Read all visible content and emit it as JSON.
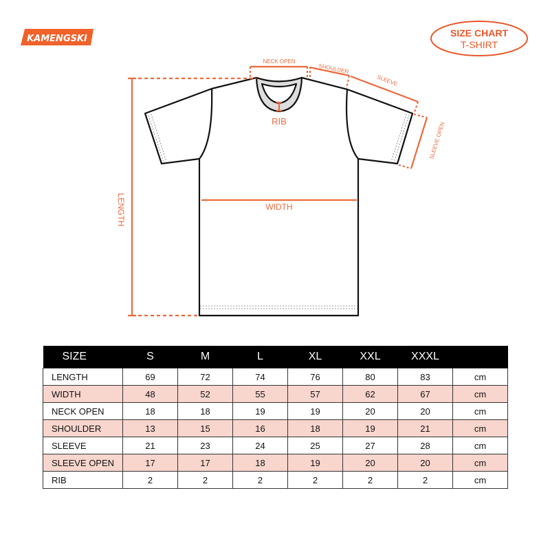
{
  "brand": {
    "logo_text": "KAMENGSKI",
    "color": "#f0622a"
  },
  "badge": {
    "line1": "SIZE CHART",
    "line2": "T-SHIRT",
    "color": "#e8582a"
  },
  "diagram": {
    "accent": "#ec6a3c",
    "labels": {
      "neck_open": "NECK OPEN",
      "shoulder": "SHOULDER",
      "sleeve": "SLEEVE",
      "sleeve_open": "SLEEVE OPEN",
      "rib": "RIB",
      "width": "WIDTH",
      "length": "LENGTH"
    }
  },
  "table": {
    "header": [
      "SIZE",
      "S",
      "M",
      "L",
      "XL",
      "XXL",
      "XXXL",
      ""
    ],
    "alt_row_color": "#f8d5cd",
    "rows": [
      {
        "label": "LENGTH",
        "values": [
          "69",
          "72",
          "74",
          "76",
          "80",
          "83"
        ],
        "unit": "cm"
      },
      {
        "label": "WIDTH",
        "values": [
          "48",
          "52",
          "55",
          "57",
          "62",
          "67"
        ],
        "unit": "cm"
      },
      {
        "label": "NECK OPEN",
        "values": [
          "18",
          "18",
          "19",
          "19",
          "20",
          "20"
        ],
        "unit": "cm"
      },
      {
        "label": "SHOULDER",
        "values": [
          "13",
          "15",
          "16",
          "18",
          "19",
          "21"
        ],
        "unit": "cm"
      },
      {
        "label": "SLEEVE",
        "values": [
          "21",
          "23",
          "24",
          "25",
          "27",
          "28"
        ],
        "unit": "cm"
      },
      {
        "label": "SLEEVE OPEN",
        "values": [
          "17",
          "17",
          "18",
          "19",
          "20",
          "20"
        ],
        "unit": "cm"
      },
      {
        "label": "RIB",
        "values": [
          "2",
          "2",
          "2",
          "2",
          "2",
          "2"
        ],
        "unit": "cm"
      }
    ]
  }
}
